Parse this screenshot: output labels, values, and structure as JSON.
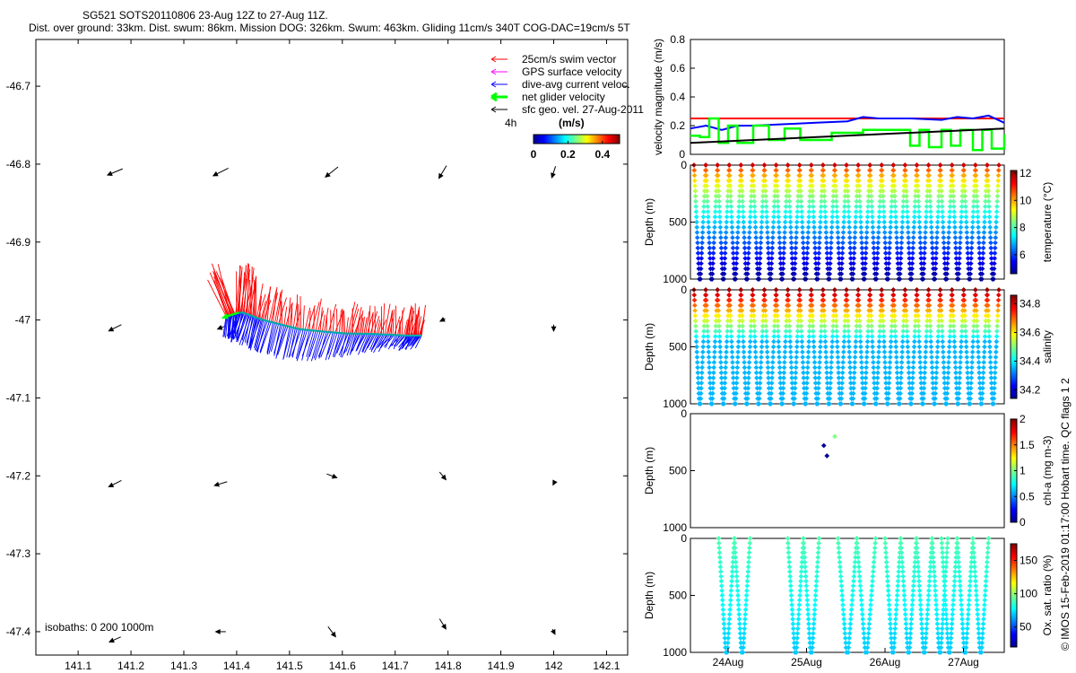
{
  "header": {
    "line1": "SG521 SOTS20110806 23-Aug 12Z to 27-Aug 11Z.",
    "line2": "Dist. over ground: 33km. Dist. swum: 86km. Mission DOG: 326km. Swum: 463km. Gliding 11cm/s 340T COG-DAC=19cm/s 5T"
  },
  "side_note": "© IMOS 15-Feb-2019 01:17:00 Hobart time. QC flags 1  2",
  "colors": {
    "swim": "#ff0000",
    "gps": "#ff00ff",
    "dac": "#0000ff",
    "net": "#00ff00",
    "geo": "#000000"
  },
  "chart_data": [
    {
      "type": "map-vector",
      "xticks": [
        "141.1",
        "141.2",
        "141.3",
        "141.4",
        "141.5",
        "141.6",
        "141.7",
        "141.8",
        "141.9",
        "142",
        "142.1"
      ],
      "yticks": [
        "-46.7",
        "-46.8",
        "-46.9",
        "-47",
        "-47.1",
        "-47.2",
        "-47.3",
        "-47.4"
      ],
      "xlim": [
        141.02,
        142.14
      ],
      "ylim": [
        -47.43,
        -46.64
      ],
      "legend": [
        {
          "label": "25cm/s swim vector",
          "color": "#ff0000"
        },
        {
          "label": "GPS surface velocity",
          "color": "#ff00ff"
        },
        {
          "label": "dive-avg current veloc.",
          "color": "#0000ff"
        },
        {
          "label": "net glider velocity",
          "color": "#00ff00"
        },
        {
          "label": "sfc geo. vel. 27-Aug-2011",
          "color": "#000000"
        }
      ],
      "timestep_label": "4h",
      "colorbar": {
        "title": "(m/s)",
        "ticks": [
          "0",
          "0.2",
          "0.4"
        ],
        "range": [
          0,
          0.5
        ]
      },
      "isobaths": "isobaths: 0    200  1000m",
      "track": {
        "lon": [
          141.38,
          141.41,
          141.45,
          141.52,
          141.6,
          141.66,
          141.72,
          141.75
        ],
        "lat": [
          -46.995,
          -46.99,
          -47.0,
          -47.012,
          -47.017,
          -47.018,
          -47.02,
          -47.02
        ]
      },
      "geo_vectors": [
        {
          "lon": 141.17,
          "lat": -46.81,
          "u": 1.2,
          "v": 0.5
        },
        {
          "lon": 141.37,
          "lat": -46.81,
          "u": 1.2,
          "v": 0.6
        },
        {
          "lon": 141.58,
          "lat": -46.81,
          "u": 1.0,
          "v": 0.8
        },
        {
          "lon": 141.79,
          "lat": -46.81,
          "u": 0.6,
          "v": 1.0
        },
        {
          "lon": 142.0,
          "lat": -46.81,
          "u": 0.3,
          "v": 0.9
        },
        {
          "lon": 141.17,
          "lat": -47.01,
          "u": 1.0,
          "v": 0.5
        },
        {
          "lon": 141.37,
          "lat": -47.01,
          "u": 0.5,
          "v": 0.2
        },
        {
          "lon": 141.79,
          "lat": -47.0,
          "u": 0.4,
          "v": 0.2
        },
        {
          "lon": 142.0,
          "lat": -47.01,
          "u": 0.0,
          "v": 0.5
        },
        {
          "lon": 141.17,
          "lat": -47.21,
          "u": 1.0,
          "v": 0.5
        },
        {
          "lon": 141.37,
          "lat": -47.21,
          "u": 1.0,
          "v": 0.3
        },
        {
          "lon": 141.58,
          "lat": -47.2,
          "u": -0.8,
          "v": 0.3
        },
        {
          "lon": 141.79,
          "lat": -47.2,
          "u": -0.5,
          "v": 0.6
        },
        {
          "lon": 142.0,
          "lat": -47.21,
          "u": 0.1,
          "v": 0.2
        },
        {
          "lon": 141.17,
          "lat": -47.41,
          "u": 0.9,
          "v": 0.4
        },
        {
          "lon": 141.37,
          "lat": -47.4,
          "u": 0.8,
          "v": 0.0
        },
        {
          "lon": 141.58,
          "lat": -47.4,
          "u": -0.6,
          "v": 0.8
        },
        {
          "lon": 141.79,
          "lat": -47.39,
          "u": -0.5,
          "v": 0.8
        },
        {
          "lon": 142.0,
          "lat": -47.4,
          "u": -0.2,
          "v": 0.4
        }
      ]
    },
    {
      "type": "line",
      "ylabel": "velocity magnitude (m/s)",
      "ylim": [
        0,
        0.8
      ],
      "yticks": [
        "0",
        "0.2",
        "0.4",
        "0.6",
        "0.8"
      ],
      "series": [
        {
          "name": "swim",
          "color": "#ff0000",
          "x": [
            0,
            0.5,
            1
          ],
          "y": [
            0.25,
            0.25,
            0.25
          ]
        },
        {
          "name": "dac",
          "color": "#0000ff",
          "x": [
            0,
            0.05,
            0.1,
            0.15,
            0.2,
            0.3,
            0.4,
            0.5,
            0.55,
            0.6,
            0.7,
            0.8,
            0.85,
            0.9,
            0.95,
            1
          ],
          "y": [
            0.18,
            0.2,
            0.17,
            0.2,
            0.2,
            0.21,
            0.22,
            0.23,
            0.26,
            0.25,
            0.25,
            0.24,
            0.26,
            0.25,
            0.27,
            0.22
          ]
        },
        {
          "name": "net",
          "color": "#00ff00",
          "x": [
            0,
            0.03,
            0.06,
            0.09,
            0.12,
            0.15,
            0.2,
            0.25,
            0.3,
            0.35,
            0.45,
            0.5,
            0.55,
            0.6,
            0.7,
            0.73,
            0.76,
            0.8,
            0.83,
            0.86,
            0.9,
            0.93,
            0.96,
            1
          ],
          "y": [
            0.13,
            0.12,
            0.25,
            0.08,
            0.2,
            0.08,
            0.2,
            0.1,
            0.18,
            0.1,
            0.15,
            0.15,
            0.17,
            0.17,
            0.06,
            0.17,
            0.05,
            0.17,
            0.06,
            0.17,
            0.03,
            0.17,
            0.04,
            0.14
          ]
        },
        {
          "name": "geo",
          "color": "#000000",
          "x": [
            0,
            1
          ],
          "y": [
            0.08,
            0.18
          ]
        }
      ]
    },
    {
      "type": "scatter",
      "variable": "temperature",
      "ylabel": "Depth (m)",
      "clabel": "temperature (°C)",
      "yticks": [
        "0",
        "500",
        "1000"
      ],
      "ylim": [
        1000,
        0
      ],
      "cticks": [
        "6",
        "8",
        "10",
        "12"
      ],
      "crange": [
        4.6,
        12.2
      ],
      "profile": {
        "surface": 11.6,
        "bottom": 4.8
      },
      "dives": 26
    },
    {
      "type": "scatter",
      "variable": "salinity",
      "ylabel": "Depth (m)",
      "clabel": "salinity",
      "yticks": [
        "0",
        "500",
        "1000"
      ],
      "ylim": [
        1000,
        0
      ],
      "cticks": [
        "34.2",
        "34.4",
        "34.6",
        "34.8"
      ],
      "crange": [
        34.14,
        34.86
      ],
      "profile": {
        "surface": 34.84,
        "bottom": 34.36
      },
      "dives": 26
    },
    {
      "type": "scatter",
      "variable": "chl-a",
      "ylabel": "Depth (m)",
      "clabel": "chl-a (mg m-3)",
      "yticks": [
        "0",
        "500",
        "1000"
      ],
      "ylim": [
        1000,
        0
      ],
      "cticks": [
        "0",
        "0.5",
        "1",
        "1.5",
        "2"
      ],
      "crange": [
        0,
        2
      ],
      "points": [
        {
          "t": 0.425,
          "depth": 280,
          "value": 0.05
        },
        {
          "t": 0.435,
          "depth": 370,
          "value": 0.05
        },
        {
          "t": 0.46,
          "depth": 200,
          "value": 1.0
        }
      ]
    },
    {
      "type": "scatter",
      "variable": "oxygen",
      "ylabel": "Depth (m)",
      "clabel": "Ox. sat. ratio (%)",
      "yticks": [
        "0",
        "500",
        "1000"
      ],
      "ylim": [
        1000,
        0
      ],
      "cticks": [
        "50",
        "100",
        "150"
      ],
      "crange": [
        20,
        175
      ],
      "profile": {
        "surface": 90,
        "bottom": 70
      },
      "xticks": [
        "24Aug",
        "25Aug",
        "26Aug",
        "27Aug"
      ],
      "dive_segments": [
        [
          0.09,
          0.19
        ],
        [
          0.31,
          0.41
        ],
        [
          0.47,
          0.59
        ],
        [
          0.62,
          0.82
        ],
        [
          0.8,
          0.95
        ]
      ]
    }
  ]
}
